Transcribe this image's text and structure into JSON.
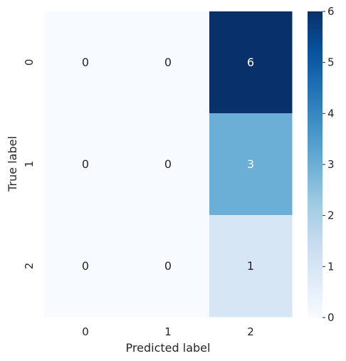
{
  "chart_data": {
    "type": "heatmap",
    "title": "",
    "xlabel": "Predicted label",
    "ylabel": "True label",
    "x_categories": [
      "0",
      "1",
      "2"
    ],
    "y_categories": [
      "0",
      "1",
      "2"
    ],
    "values": [
      [
        0,
        0,
        6
      ],
      [
        0,
        0,
        3
      ],
      [
        0,
        0,
        1
      ]
    ],
    "annotations": true,
    "colormap": "Blues",
    "colorbar": {
      "min": 0,
      "max": 6,
      "ticks": [
        "0",
        "1",
        "2",
        "3",
        "4",
        "5",
        "6"
      ]
    }
  }
}
